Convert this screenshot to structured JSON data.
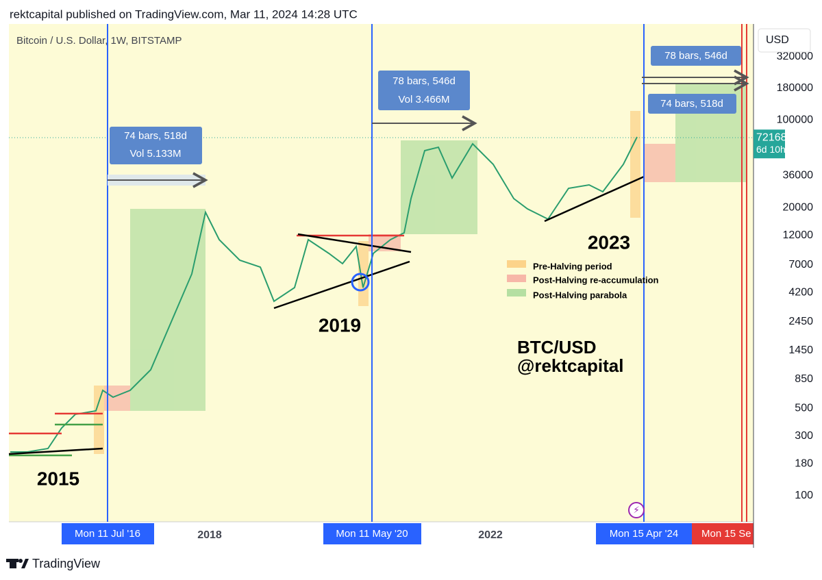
{
  "header": "rektcapital published on TradingView.com, Mar 11, 2024 14:28 UTC",
  "symbol": "Bitcoin / U.S. Dollar, 1W, BITSTAMP",
  "currency": "USD",
  "price_axis": {
    "ticks": [
      320000,
      180000,
      100000,
      36000,
      20000,
      12000,
      7000,
      4200,
      2450,
      1450,
      850,
      500,
      300,
      180,
      100
    ],
    "current_price": 72168,
    "countdown": "6d 10h"
  },
  "time_axis": {
    "years": [
      "2018",
      "2022"
    ],
    "markers": [
      "Mon 11 Jul '16",
      "Mon 11 May '20",
      "Mon 15 Apr '24",
      "Mon 15 Se"
    ]
  },
  "measurements": [
    {
      "lines": [
        "74 bars, 518d",
        "Vol 5.133M"
      ]
    },
    {
      "lines": [
        "78 bars, 546d",
        "Vol 3.466M"
      ]
    },
    {
      "lines": [
        "78 bars, 546d"
      ]
    },
    {
      "lines": [
        "74 bars, 518d"
      ]
    }
  ],
  "annotations": {
    "years": [
      "2015",
      "2019",
      "2023"
    ],
    "watermark": [
      "BTC/USD",
      "@rektcapital"
    ]
  },
  "legend": [
    "Pre-Halving period",
    "Post-Halving re-accumulation",
    "Post-Halving parabola"
  ],
  "footer": "TradingView"
}
